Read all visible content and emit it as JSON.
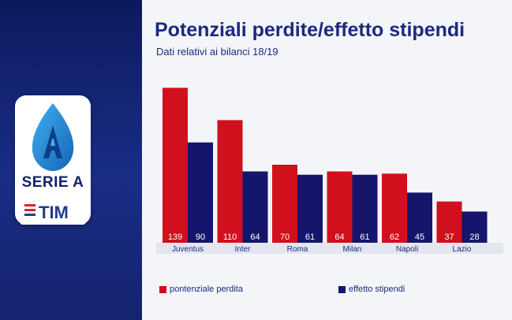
{
  "header": {
    "title": "Potenziali perdite/effetto stipendi",
    "subtitle": "Dati relativi ai bilanci 18/19"
  },
  "logo": {
    "icon": "serie-a-ball-icon",
    "text": "SERIE A",
    "sponsor": "TIM"
  },
  "colors": {
    "series_red": "#d0101c",
    "series_navy": "#15166b",
    "title": "#1b2a80",
    "panel": "#14236d"
  },
  "chart_data": {
    "type": "bar",
    "title": "Potenziali perdite/effetto stipendi",
    "subtitle": "Dati relativi ai bilanci 18/19",
    "categories": [
      "Juventus",
      "Inter",
      "Roma",
      "Milan",
      "Napoli",
      "Lazio"
    ],
    "series": [
      {
        "name": "pontenziale perdita",
        "values": [
          139,
          110,
          70,
          64,
          62,
          37
        ],
        "color": "#d0101c"
      },
      {
        "name": "effetto stipendi",
        "values": [
          90,
          64,
          61,
          61,
          45,
          28
        ],
        "color": "#15166b"
      }
    ],
    "ylim": [
      0,
      140
    ],
    "data_labels": true,
    "grid": false,
    "legend": "bottom-left"
  }
}
